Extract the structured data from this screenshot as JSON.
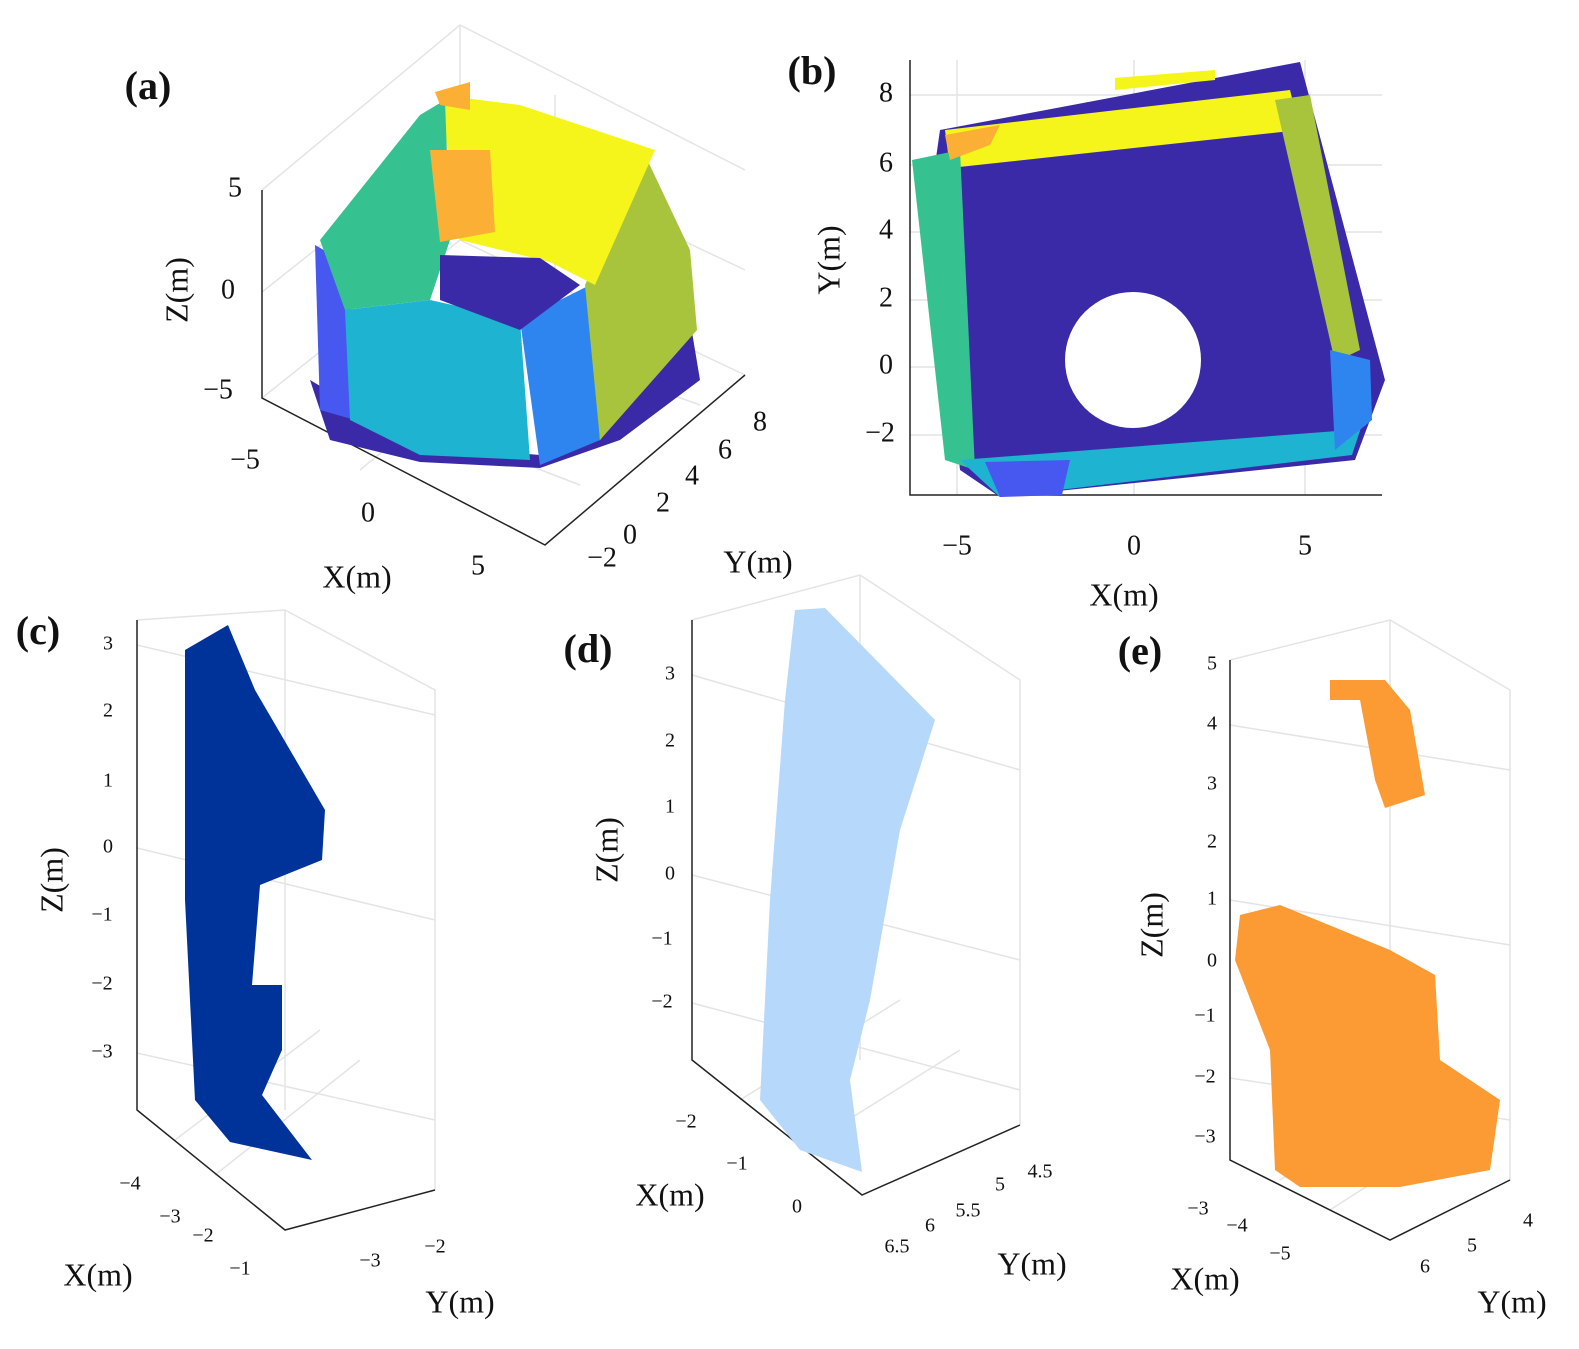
{
  "panels": [
    {
      "label": "(a)",
      "axes": [
        {
          "title": "Z(m)",
          "ticks": [
            "5",
            "0",
            "−5"
          ]
        },
        {
          "title": "X(m)",
          "ticks": [
            "−5",
            "0",
            "5"
          ]
        },
        {
          "title": "Y(m)",
          "ticks": [
            "−2",
            "0",
            "2",
            "4",
            "6",
            "8"
          ]
        }
      ]
    },
    {
      "label": "(b)",
      "axes": [
        {
          "title": "Y(m)",
          "ticks": [
            "8",
            "6",
            "4",
            "2",
            "0",
            "−2"
          ]
        },
        {
          "title": "X(m)",
          "ticks": [
            "−5",
            "0",
            "5"
          ]
        }
      ]
    },
    {
      "label": "(c)",
      "axes": [
        {
          "title": "Z(m)",
          "ticks": [
            "3",
            "2",
            "1",
            "0",
            "−1",
            "−2",
            "−3"
          ]
        },
        {
          "title": "X(m)",
          "ticks": [
            "−4",
            "−3",
            "−2",
            "−1"
          ]
        },
        {
          "title": "Y(m)",
          "ticks": [
            "−3",
            "−2"
          ]
        }
      ]
    },
    {
      "label": "(d)",
      "axes": [
        {
          "title": "Z(m)",
          "ticks": [
            "3",
            "2",
            "1",
            "0",
            "−1",
            "−2"
          ]
        },
        {
          "title": "X(m)",
          "ticks": [
            "−2",
            "−1",
            "0"
          ]
        },
        {
          "title": "Y(m)",
          "ticks": [
            "6.5",
            "6",
            "5.5",
            "5",
            "4.5"
          ]
        }
      ]
    },
    {
      "label": "(e)",
      "axes": [
        {
          "title": "Z(m)",
          "ticks": [
            "5",
            "4",
            "3",
            "2",
            "1",
            "0",
            "−1",
            "−2",
            "−3"
          ]
        },
        {
          "title": "X(m)",
          "ticks": [
            "−3",
            "−4",
            "−5"
          ]
        },
        {
          "title": "Y(m)",
          "ticks": [
            "6",
            "5",
            "4"
          ]
        }
      ]
    }
  ]
}
